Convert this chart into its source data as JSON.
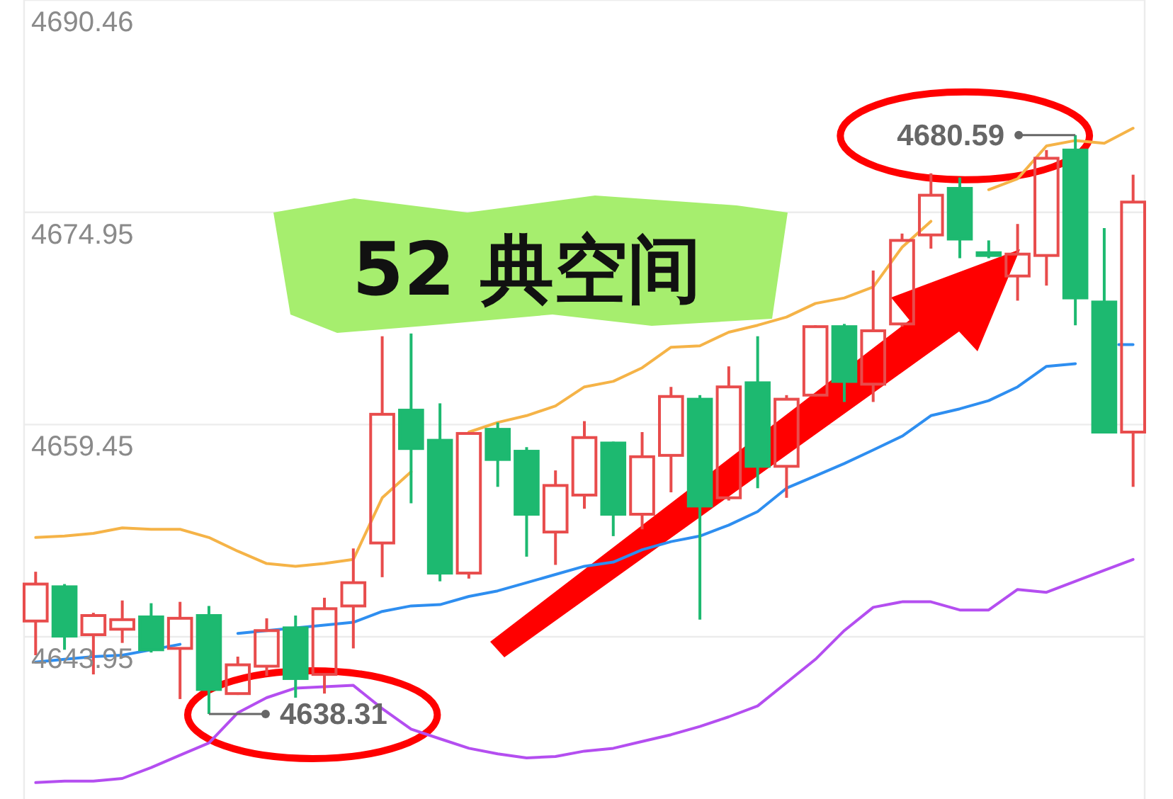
{
  "chart_data": {
    "type": "candlestick",
    "categories": [
      null,
      null,
      null,
      null,
      null,
      null,
      null,
      null,
      null,
      null,
      null,
      null,
      null,
      null,
      null,
      null,
      null,
      null,
      null,
      null,
      null,
      null,
      null,
      null,
      null,
      null,
      null,
      null,
      null,
      null,
      null,
      null,
      null,
      null,
      null,
      null,
      null,
      null,
      null
    ],
    "ohlc": [
      [
        4645.1,
        4648.7,
        4642.6,
        4647.8
      ],
      [
        4647.6,
        4647.8,
        4643.0,
        4644.0
      ],
      [
        4644.1,
        4645.7,
        4641.2,
        4645.5
      ],
      [
        4644.5,
        4646.6,
        4643.5,
        4645.2
      ],
      [
        4645.4,
        4646.4,
        4642.8,
        4643.0
      ],
      [
        4643.1,
        4646.5,
        4639.4,
        4645.3
      ],
      [
        4645.5,
        4646.2,
        4638.31,
        4640.1
      ],
      [
        4639.8,
        4642.5,
        4639.7,
        4641.9
      ],
      [
        4641.8,
        4645.3,
        4641.1,
        4644.4
      ],
      [
        4644.6,
        4645.5,
        4639.5,
        4640.9
      ],
      [
        4641.2,
        4646.8,
        4639.8,
        4646.0
      ],
      [
        4646.2,
        4650.4,
        4643.1,
        4647.9
      ],
      [
        4650.8,
        4665.9,
        4648.3,
        4660.2
      ],
      [
        4660.5,
        4666.1,
        4653.7,
        4657.7
      ],
      [
        4658.3,
        4661.0,
        4648.0,
        4648.6
      ],
      [
        4648.6,
        4658.9,
        4648.2,
        4658.8
      ],
      [
        4659.1,
        4659.6,
        4654.9,
        4656.9
      ],
      [
        4657.5,
        4657.8,
        4649.8,
        4652.9
      ],
      [
        4651.6,
        4656.1,
        4649.2,
        4655.0
      ],
      [
        4654.3,
        4659.7,
        4653.3,
        4658.5
      ],
      [
        4658.1,
        4658.2,
        4651.3,
        4652.9
      ],
      [
        4652.9,
        4658.9,
        4651.8,
        4657.1
      ],
      [
        4657.2,
        4662.2,
        4654.5,
        4661.5
      ],
      [
        4661.3,
        4661.6,
        4645.2,
        4653.5
      ],
      [
        4654.1,
        4663.7,
        4653.9,
        4662.2
      ],
      [
        4662.5,
        4665.9,
        4654.8,
        4656.4
      ],
      [
        4656.4,
        4661.6,
        4654.1,
        4661.3
      ],
      [
        4661.6,
        4666.7,
        4661.5,
        4666.6
      ],
      [
        4666.6,
        4666.8,
        4661.1,
        4662.6
      ],
      [
        4662.4,
        4670.7,
        4661.1,
        4666.3
      ],
      [
        4666.8,
        4673.4,
        4666.6,
        4672.9
      ],
      [
        4673.3,
        4677.8,
        4672.3,
        4676.2
      ],
      [
        4676.7,
        4677.5,
        4671.6,
        4673.0
      ],
      [
        4672.0,
        4672.9,
        4671.6,
        4671.8
      ],
      [
        4670.3,
        4674.1,
        4668.5,
        4671.9
      ],
      [
        4671.8,
        4679.5,
        4669.6,
        4678.9
      ],
      [
        4679.5,
        4680.59,
        4666.7,
        4668.7
      ],
      [
        4668.4,
        4673.8,
        4658.8,
        4658.9
      ],
      [
        4658.9,
        4677.7,
        4654.9,
        4675.7
      ]
    ],
    "colors": [
      "#e84c4c",
      "#1db970",
      "#e84c4c",
      "#e84c4c",
      "#1db970",
      "#e84c4c",
      "#1db970",
      "#e84c4c",
      "#e84c4c",
      "#1db970",
      "#e84c4c",
      "#e84c4c",
      "#e84c4c",
      "#1db970",
      "#1db970",
      "#e84c4c",
      "#1db970",
      "#1db970",
      "#e84c4c",
      "#e84c4c",
      "#1db970",
      "#e84c4c",
      "#e84c4c",
      "#1db970",
      "#e84c4c",
      "#1db970",
      "#e84c4c",
      "#e84c4c",
      "#1db970",
      "#e84c4c",
      "#e84c4c",
      "#e84c4c",
      "#1db970",
      "#1db970",
      "#e84c4c",
      "#e84c4c",
      "#1db970",
      "#1db970",
      "#e84c4c"
    ],
    "series": [
      {
        "type": "line",
        "color": "#f5b347",
        "values": [
          4651.2,
          4651.3,
          4651.5,
          4651.9,
          4651.8,
          4651.8,
          4651.2,
          4650.2,
          4649.3,
          4649.1,
          4649.3,
          4649.6,
          4654.1,
          4656.0,
          null,
          4658.9,
          4659.6,
          4660.1,
          4660.8,
          4662.2,
          4662.6,
          4663.6,
          4665.1,
          4665.2,
          4666.2,
          4666.7,
          4667.3,
          4668.3,
          4668.7,
          4669.5,
          4672.4,
          4674.3,
          null,
          4676.6,
          4677.4,
          4679.8,
          4680.2,
          4680.0,
          4681.1
        ]
      },
      {
        "type": "line",
        "color": "#2e8ef0",
        "values": [
          4642.1,
          4642.3,
          4642.5,
          4642.6,
          4643.0,
          4643.4,
          null,
          4644.2,
          4644.4,
          4644.6,
          4644.8,
          4645.0,
          4645.8,
          4646.2,
          4646.3,
          4646.9,
          4647.3,
          4647.9,
          4648.5,
          4649.1,
          4649.4,
          4650.3,
          4650.9,
          4651.3,
          4652.1,
          4653.1,
          4654.8,
          4655.7,
          4656.6,
          4657.6,
          4658.6,
          4660.1,
          4660.6,
          4661.2,
          4662.2,
          4663.7,
          4663.9,
          null,
          4665.3
        ]
      },
      {
        "type": "line",
        "color": "#b44ef0",
        "values": [
          4633.3,
          4633.4,
          4633.4,
          4633.6,
          4634.4,
          4635.3,
          4636.2,
          4638.4,
          4639.5,
          4640.2,
          4640.3,
          4640.4,
          4638.7,
          4637.2,
          4636.5,
          4635.8,
          4635.4,
          4635.1,
          4635.2,
          4635.6,
          4635.8,
          4636.3,
          4636.8,
          4637.4,
          4638.1,
          4638.9,
          4640.6,
          4642.3,
          4644.4,
          4646.1,
          4646.5,
          4646.5,
          4645.9,
          4645.9,
          4647.4,
          4647.2,
          4648.0,
          4648.8,
          4649.6
        ]
      }
    ],
    "ylim": [
      4632.1,
      4690.46
    ],
    "yticks": [
      4690.46,
      4674.95,
      4659.45,
      4643.95
    ],
    "grid": "y",
    "annotations": [
      "52 典空间",
      "4638.31",
      "4680.59"
    ]
  }
}
